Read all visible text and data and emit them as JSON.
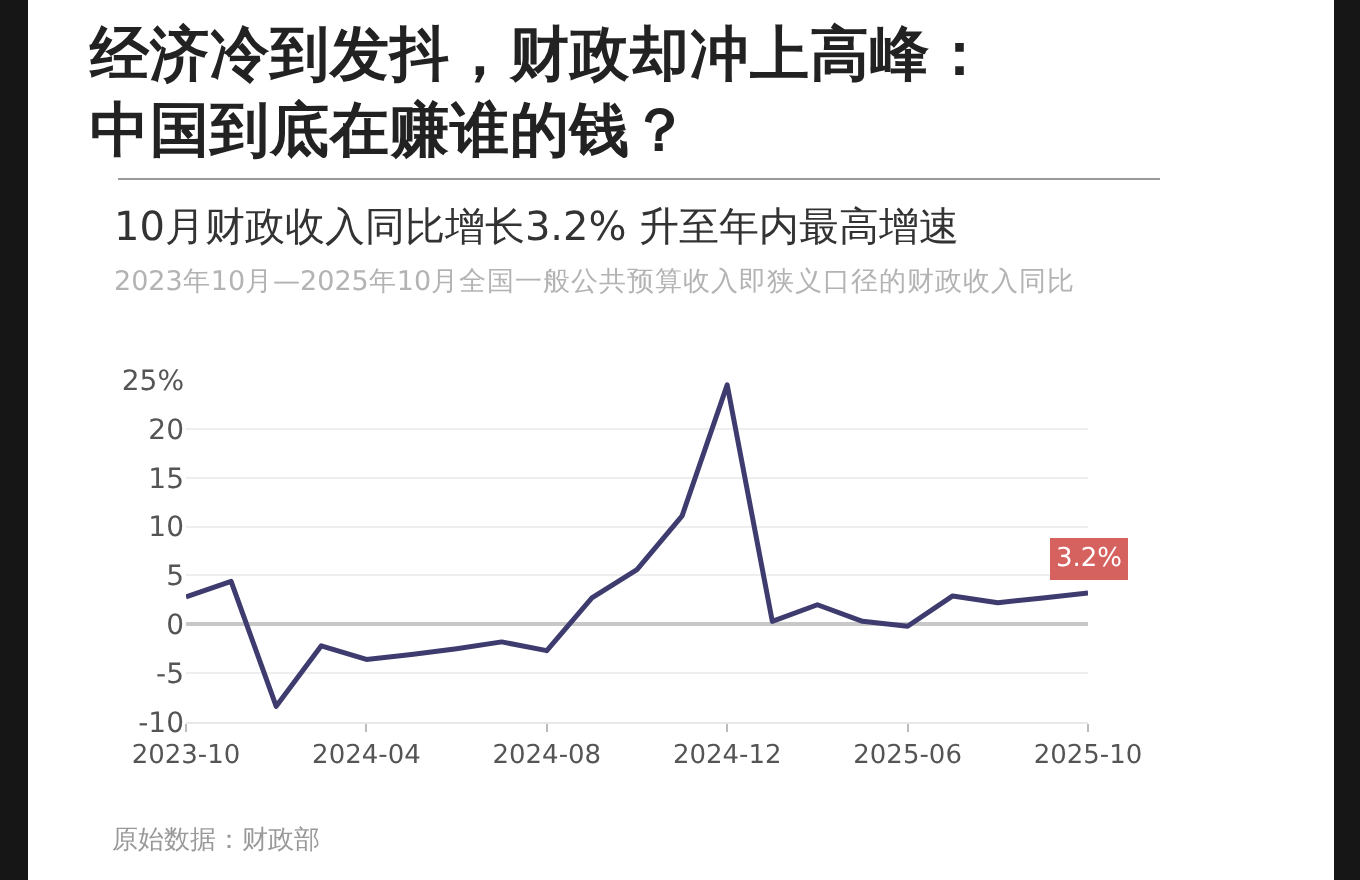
{
  "chart_data": {
    "type": "line",
    "title": "经济冷到发抖，财政却冲上高峰：中国到底在赚谁的钱？",
    "subtitle": "10月财政收入同比增长3.2% 升至年内最高增速",
    "annotations": [
      "2023年10月—2025年10月全国一般公共预算收入即狭义口径的财政收入同比",
      "原始数据：财政部"
    ],
    "categories": [
      "2023-10",
      null,
      null,
      null,
      "2024-04",
      null,
      null,
      null,
      "2024-08",
      null,
      null,
      null,
      "2024-12",
      null,
      null,
      null,
      "2025-06",
      null,
      null,
      null,
      "2025-10"
    ],
    "values": [
      2.8,
      4.4,
      -8.4,
      -2.2,
      -3.6,
      -3.1,
      -2.5,
      -1.8,
      -2.7,
      2.7,
      5.6,
      11.1,
      24.5,
      0.3,
      2.0,
      0.3,
      -0.2,
      2.9,
      2.2,
      2.7,
      3.2
    ],
    "value_labels": [
      null,
      null,
      null,
      null,
      null,
      null,
      null,
      null,
      null,
      null,
      null,
      null,
      null,
      null,
      null,
      null,
      null,
      null,
      null,
      null,
      "3.2%"
    ],
    "color": "#3e3b6f",
    "ylim": [
      -10,
      25
    ],
    "yticks": [
      -10,
      -5,
      0,
      5,
      10,
      15,
      20,
      {
        "value": 25,
        "label": "25%"
      }
    ],
    "grid": "y"
  }
}
